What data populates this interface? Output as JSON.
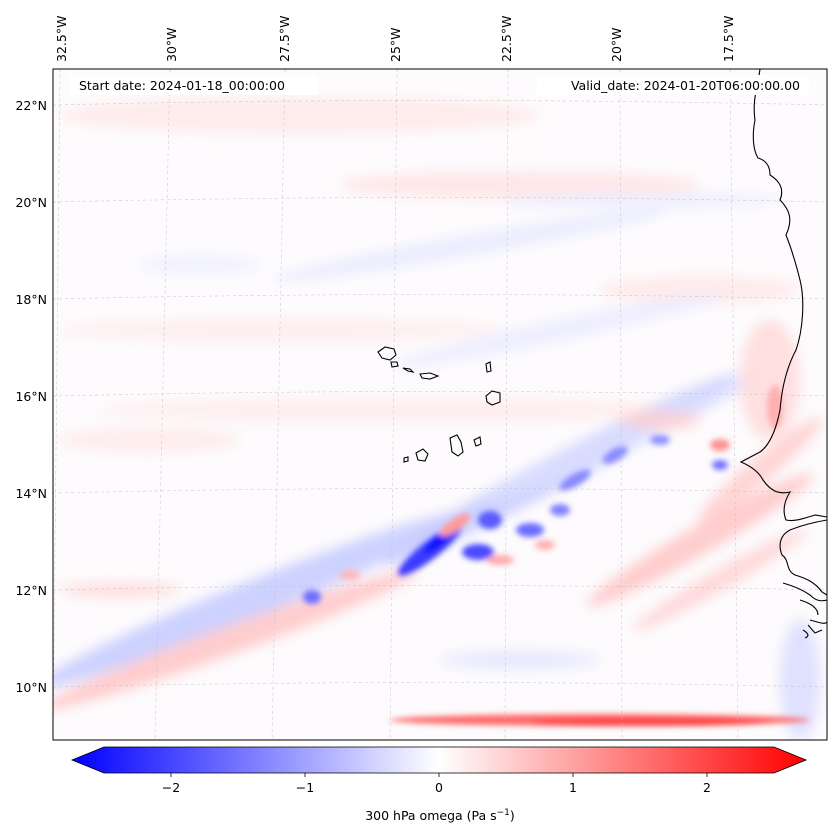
{
  "header": {
    "start_date": "Start date: 2024-01-18_00:00:00",
    "valid_date": "Valid_date: 2024-01-20T06:00:00.00"
  },
  "lon_labels": [
    "32.5°W",
    "30°W",
    "27.5°W",
    "25°W",
    "22.5°W",
    "20°W",
    "17.5°W"
  ],
  "lat_labels": [
    "22°N",
    "20°N",
    "18°N",
    "16°N",
    "14°N",
    "12°N",
    "10°N"
  ],
  "colorbar": {
    "ticks": [
      "−2",
      "−1",
      "0",
      "1",
      "2"
    ],
    "tick_values": [
      -2,
      -1,
      0,
      1,
      2
    ],
    "range": [
      -2.5,
      2.5
    ],
    "label_text": "300 hPa omega (Pa s",
    "label_sup": "−1",
    "label_close": ")",
    "colors": {
      "negative": "#0000ff",
      "zero": "#ffffff",
      "positive": "#ff0000"
    }
  },
  "colors": {
    "coastline": "#000000",
    "grid": "#b0b0b0"
  }
}
